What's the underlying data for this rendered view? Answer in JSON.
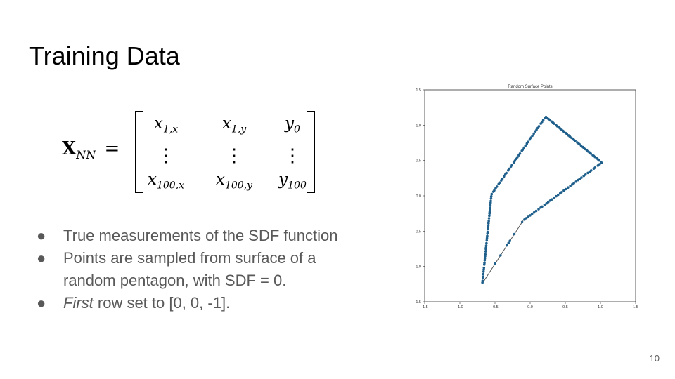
{
  "slide": {
    "title": "Training Data",
    "page_number": "10"
  },
  "equation": {
    "lhs_symbol": "X",
    "lhs_subscript": "NN",
    "equals": "=",
    "rows": [
      [
        {
          "base": "x",
          "sub": "1,x"
        },
        {
          "base": "x",
          "sub": "1,y"
        },
        {
          "base": "y",
          "sub": "0"
        }
      ],
      [
        {
          "base": "⋮",
          "sub": ""
        },
        {
          "base": "⋮",
          "sub": ""
        },
        {
          "base": "⋮",
          "sub": ""
        }
      ],
      [
        {
          "base": "x",
          "sub": "100,x"
        },
        {
          "base": "x",
          "sub": "100,y"
        },
        {
          "base": "y",
          "sub": "100"
        }
      ]
    ]
  },
  "bullets": [
    {
      "marker": "●",
      "em": "",
      "text": "True measurements of the SDF function"
    },
    {
      "marker": "●",
      "em": "",
      "text": "Points are sampled from surface of a"
    },
    {
      "marker": "",
      "em": "",
      "text": "random pentagon, with SDF = 0."
    },
    {
      "marker": "●",
      "em": "First",
      "text": " row set to [0, 0, -1]."
    }
  ],
  "chart_data": {
    "type": "scatter",
    "title": "Random Surface Points",
    "xlabel": "",
    "ylabel": "",
    "xlim": [
      -1.5,
      1.5
    ],
    "ylim": [
      -1.5,
      1.5
    ],
    "xticks": [
      "-1.5",
      "-1.0",
      "-0.5",
      "0.0",
      "0.5",
      "1.0",
      "1.5"
    ],
    "yticks": [
      "-1.5",
      "-1.0",
      "-0.5",
      "0.0",
      "0.5",
      "1.0",
      "1.5"
    ],
    "grid": false,
    "point_color": "#1f5f8b",
    "line_color": "#555555",
    "pentagon_vertices": [
      [
        0.22,
        1.12
      ],
      [
        1.02,
        0.47
      ],
      [
        -0.1,
        -0.35
      ],
      [
        -0.68,
        -1.24
      ],
      [
        -0.55,
        0.02
      ]
    ],
    "sparse_edge": [
      [
        -0.1,
        -0.35
      ],
      [
        -0.68,
        -1.24
      ]
    ]
  }
}
